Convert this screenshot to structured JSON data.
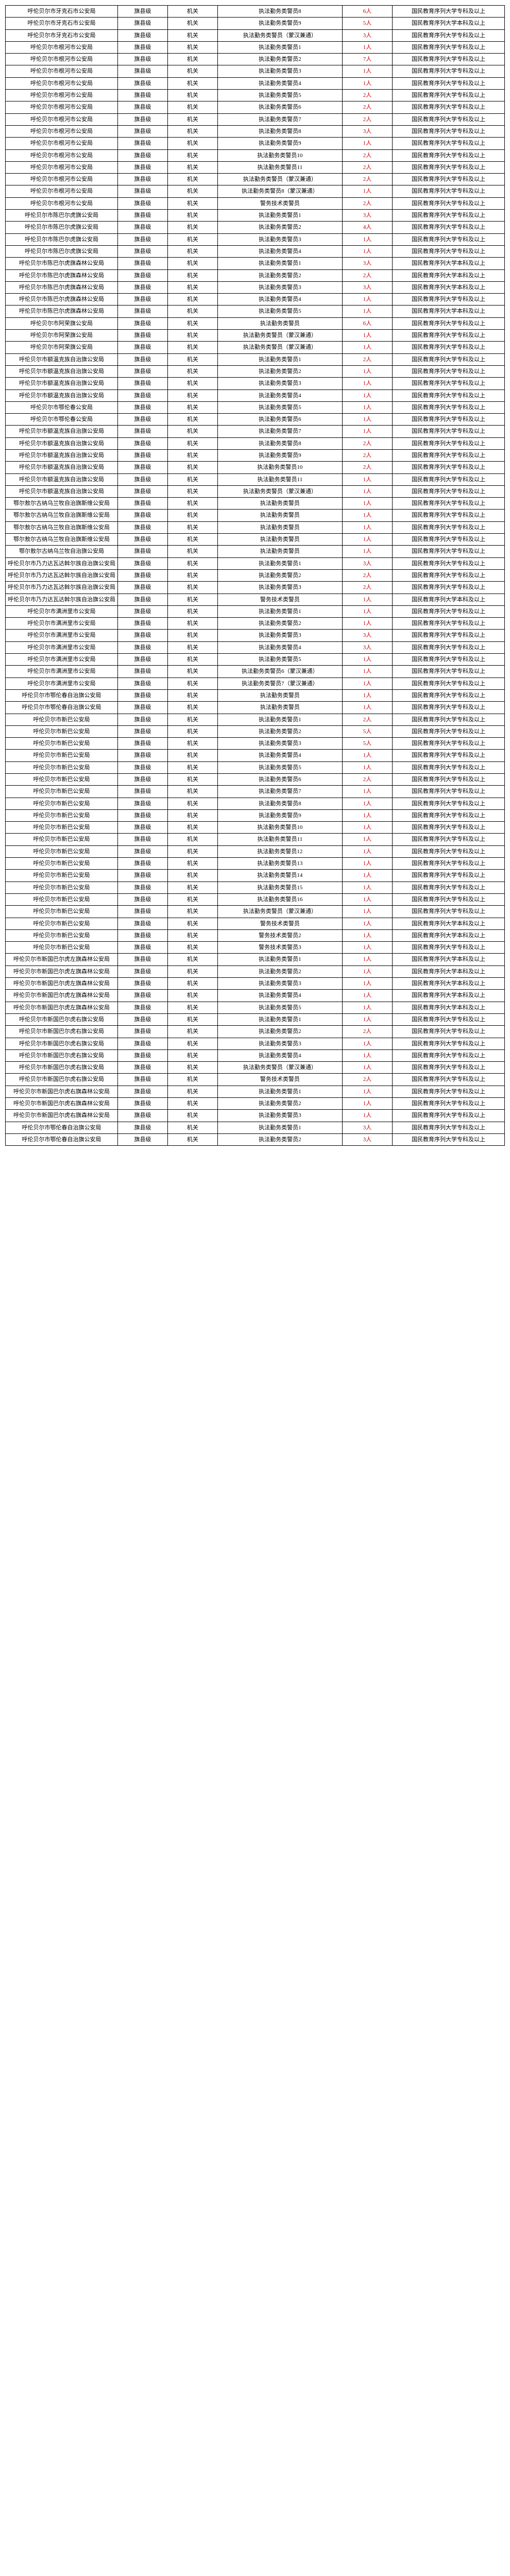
{
  "table": {
    "column_widths": [
      "180px",
      "80px",
      "80px",
      "200px",
      "80px",
      "180px"
    ],
    "count_color": "#c00000",
    "border_color": "#000000",
    "font_family": "SimSun",
    "font_size": 11,
    "level_default": "旗县级",
    "type_default": "机关",
    "edu_zhuanke": "国民教育序列大学专科及以上",
    "edu_benke": "国民教育序列大学本科及以上",
    "rows": [
      {
        "org": "呼伦贝尔市牙克石市公安局",
        "pos": "执法勤务类警员8",
        "count": "6人",
        "edu": "zk"
      },
      {
        "org": "呼伦贝尔市牙克石市公安局",
        "pos": "执法勤务类警员9",
        "count": "5人",
        "edu": "bk"
      },
      {
        "org": "呼伦贝尔市牙克石市公安局",
        "pos": "执法勤务类警员（蒙汉兼通）",
        "count": "3人",
        "edu": "zk"
      },
      {
        "org": "呼伦贝尔市根河市公安局",
        "pos": "执法勤务类警员1",
        "count": "1人",
        "edu": "zk"
      },
      {
        "org": "呼伦贝尔市根河市公安局",
        "pos": "执法勤务类警员2",
        "count": "7人",
        "edu": "zk"
      },
      {
        "org": "呼伦贝尔市根河市公安局",
        "pos": "执法勤务类警员3",
        "count": "1人",
        "edu": "zk"
      },
      {
        "org": "呼伦贝尔市根河市公安局",
        "pos": "执法勤务类警员4",
        "count": "1人",
        "edu": "zk"
      },
      {
        "org": "呼伦贝尔市根河市公安局",
        "pos": "执法勤务类警员5",
        "count": "2人",
        "edu": "zk"
      },
      {
        "org": "呼伦贝尔市根河市公安局",
        "pos": "执法勤务类警员6",
        "count": "2人",
        "edu": "zk"
      },
      {
        "org": "呼伦贝尔市根河市公安局",
        "pos": "执法勤务类警员7",
        "count": "2人",
        "edu": "zk"
      },
      {
        "org": "呼伦贝尔市根河市公安局",
        "pos": "执法勤务类警员8",
        "count": "3人",
        "edu": "zk"
      },
      {
        "org": "呼伦贝尔市根河市公安局",
        "pos": "执法勤务类警员9",
        "count": "1人",
        "edu": "zk"
      },
      {
        "org": "呼伦贝尔市根河市公安局",
        "pos": "执法勤务类警员10",
        "count": "2人",
        "edu": "zk"
      },
      {
        "org": "呼伦贝尔市根河市公安局",
        "pos": "执法勤务类警员11",
        "count": "2人",
        "edu": "zk"
      },
      {
        "org": "呼伦贝尔市根河市公安局",
        "pos": "执法勤务类警员（蒙汉兼通）",
        "count": "2人",
        "edu": "zk"
      },
      {
        "org": "呼伦贝尔市根河市公安局",
        "pos": "执法勤务类警员8（蒙汉兼通）",
        "count": "1人",
        "edu": "zk"
      },
      {
        "org": "呼伦贝尔市根河市公安局",
        "pos": "警务技术类警员",
        "count": "2人",
        "edu": "zk"
      },
      {
        "org": "呼伦贝尔市陈巴尔虎旗公安局",
        "pos": "执法勤务类警员1",
        "count": "3人",
        "edu": "zk"
      },
      {
        "org": "呼伦贝尔市陈巴尔虎旗公安局",
        "pos": "执法勤务类警员2",
        "count": "4人",
        "edu": "zk"
      },
      {
        "org": "呼伦贝尔市陈巴尔虎旗公安局",
        "pos": "执法勤务类警员3",
        "count": "1人",
        "edu": "zk"
      },
      {
        "org": "呼伦贝尔市陈巴尔虎旗公安局",
        "pos": "执法勤务类警员4",
        "count": "1人",
        "edu": "zk"
      },
      {
        "org": "呼伦贝尔市陈巴尔虎旗森林公安局",
        "pos": "执法勤务类警员1",
        "count": "3人",
        "edu": "bk"
      },
      {
        "org": "呼伦贝尔市陈巴尔虎旗森林公安局",
        "pos": "执法勤务类警员2",
        "count": "2人",
        "edu": "bk"
      },
      {
        "org": "呼伦贝尔市陈巴尔虎旗森林公安局",
        "pos": "执法勤务类警员3",
        "count": "3人",
        "edu": "bk"
      },
      {
        "org": "呼伦贝尔市陈巴尔虎旗森林公安局",
        "pos": "执法勤务类警员4",
        "count": "1人",
        "edu": "zk"
      },
      {
        "org": "呼伦贝尔市陈巴尔虎旗森林公安局",
        "pos": "执法勤务类警员5",
        "count": "1人",
        "edu": "bk"
      },
      {
        "org": "呼伦贝尔市阿荣旗公安局",
        "pos": "执法勤务类警员",
        "count": "6人",
        "edu": "zk"
      },
      {
        "org": "呼伦贝尔市阿荣旗公安局",
        "pos": "执法勤务类警员（蒙汉兼通）",
        "count": "1人",
        "edu": "zk"
      },
      {
        "org": "呼伦贝尔市阿荣旗公安局",
        "pos": "执法勤务类警员（蒙汉兼通）",
        "count": "1人",
        "edu": "zk"
      },
      {
        "org": "呼伦贝尔市额温克族自治旗公安局",
        "pos": "执法勤务类警员1",
        "count": "2人",
        "edu": "zk"
      },
      {
        "org": "呼伦贝尔市额温克族自治旗公安局",
        "pos": "执法勤务类警员2",
        "count": "1人",
        "edu": "zk"
      },
      {
        "org": "呼伦贝尔市额温克族自治旗公安局",
        "pos": "执法勤务类警员3",
        "count": "1人",
        "edu": "zk"
      },
      {
        "org": "呼伦贝尔市额温克族自治旗公安局",
        "pos": "执法勤务类警员4",
        "count": "1人",
        "edu": "zk"
      },
      {
        "org": "呼伦贝尔市鄂伦春公安局",
        "pos": "执法勤务类警员5",
        "count": "1人",
        "edu": "zk"
      },
      {
        "org": "呼伦贝尔市鄂伦春公安局",
        "pos": "执法勤务类警员6",
        "count": "1人",
        "edu": "zk"
      },
      {
        "org": "呼伦贝尔市额温克族自治旗公安局",
        "pos": "执法勤务类警员7",
        "count": "1人",
        "edu": "zk"
      },
      {
        "org": "呼伦贝尔市额温克族自治旗公安局",
        "pos": "执法勤务类警员8",
        "count": "2人",
        "edu": "zk"
      },
      {
        "org": "呼伦贝尔市额温克族自治旗公安局",
        "pos": "执法勤务类警员9",
        "count": "2人",
        "edu": "zk"
      },
      {
        "org": "呼伦贝尔市额温克族自治旗公安局",
        "pos": "执法勤务类警员10",
        "count": "2人",
        "edu": "zk"
      },
      {
        "org": "呼伦贝尔市额温克族自治旗公安局",
        "pos": "执法勤务类警员11",
        "count": "1人",
        "edu": "zk"
      },
      {
        "org": "呼伦贝尔市额温克族自治旗公安局",
        "pos": "执法勤务类警员（蒙汉兼通）",
        "count": "1人",
        "edu": "zk"
      },
      {
        "org": "鄂尔敖尔古纳乌兰牧自治旗斯维公安局",
        "pos": "执法勤务类警员",
        "count": "1人",
        "edu": "zk"
      },
      {
        "org": "鄂尔敖尔古纳乌兰牧自治旗斯维公安局",
        "pos": "执法勤务类警员",
        "count": "1人",
        "edu": "zk"
      },
      {
        "org": "鄂尔敖尔古纳乌兰牧自治旗斯维公安局",
        "pos": "执法勤务类警员",
        "count": "1人",
        "edu": "zk"
      },
      {
        "org": "鄂尔敖尔古纳乌兰牧自治旗斯维公安局",
        "pos": "执法勤务类警员",
        "count": "1人",
        "edu": "zk"
      },
      {
        "org": "鄂尔敖尔古纳乌兰牧自治旗公安局",
        "pos": "执法勤务类警员",
        "count": "1人",
        "edu": "zk"
      },
      {
        "org": "呼伦贝尔市乃力达瓦达斡尔族自治旗公安局",
        "pos": "执法勤务类警员1",
        "count": "3人",
        "edu": "zk"
      },
      {
        "org": "呼伦贝尔市乃力达瓦达斡尔族自治旗公安局",
        "pos": "执法勤务类警员2",
        "count": "2人",
        "edu": "zk"
      },
      {
        "org": "呼伦贝尔市乃力达瓦达斡尔族自治旗公安局",
        "pos": "执法勤务类警员3",
        "count": "2人",
        "edu": "zk"
      },
      {
        "org": "呼伦贝尔市乃力达瓦达斡尔族自治旗公安局",
        "pos": "警务技术类警员",
        "count": "1人",
        "edu": "bk"
      },
      {
        "org": "呼伦贝尔市满洲里市公安局",
        "pos": "执法勤务类警员1",
        "count": "1人",
        "edu": "zk"
      },
      {
        "org": "呼伦贝尔市满洲里市公安局",
        "pos": "执法勤务类警员2",
        "count": "1人",
        "edu": "zk"
      },
      {
        "org": "呼伦贝尔市满洲里市公安局",
        "pos": "执法勤务类警员3",
        "count": "3人",
        "edu": "zk"
      },
      {
        "org": "呼伦贝尔市满洲里市公安局",
        "pos": "执法勤务类警员4",
        "count": "3人",
        "edu": "zk"
      },
      {
        "org": "呼伦贝尔市满洲里市公安局",
        "pos": "执法勤务类警员5",
        "count": "1人",
        "edu": "zk"
      },
      {
        "org": "呼伦贝尔市满洲里市公安局",
        "pos": "执法勤务类警员6（蒙汉兼通）",
        "count": "1人",
        "edu": "zk"
      },
      {
        "org": "呼伦贝尔市满洲里市公安局",
        "pos": "执法勤务类警员7（蒙汉兼通）",
        "count": "1人",
        "edu": "zk"
      },
      {
        "org": "呼伦贝尔市鄂伦春自治旗公安局",
        "pos": "执法勤务类警员",
        "count": "1人",
        "edu": "zk"
      },
      {
        "org": "呼伦贝尔市鄂伦春自治旗公安局",
        "pos": "执法勤务类警员",
        "count": "1人",
        "edu": "zk"
      },
      {
        "org": "呼伦贝尔市新巴公安局",
        "pos": "执法勤务类警员1",
        "count": "2人",
        "edu": "zk"
      },
      {
        "org": "呼伦贝尔市新巴公安局",
        "pos": "执法勤务类警员2",
        "count": "5人",
        "edu": "zk"
      },
      {
        "org": "呼伦贝尔市新巴公安局",
        "pos": "执法勤务类警员3",
        "count": "5人",
        "edu": "zk"
      },
      {
        "org": "呼伦贝尔市新巴公安局",
        "pos": "执法勤务类警员4",
        "count": "1人",
        "edu": "zk"
      },
      {
        "org": "呼伦贝尔市新巴公安局",
        "pos": "执法勤务类警员5",
        "count": "1人",
        "edu": "zk"
      },
      {
        "org": "呼伦贝尔市新巴公安局",
        "pos": "执法勤务类警员6",
        "count": "2人",
        "edu": "zk"
      },
      {
        "org": "呼伦贝尔市新巴公安局",
        "pos": "执法勤务类警员7",
        "count": "1人",
        "edu": "zk"
      },
      {
        "org": "呼伦贝尔市新巴公安局",
        "pos": "执法勤务类警员8",
        "count": "1人",
        "edu": "zk"
      },
      {
        "org": "呼伦贝尔市新巴公安局",
        "pos": "执法勤务类警员9",
        "count": "1人",
        "edu": "zk"
      },
      {
        "org": "呼伦贝尔市新巴公安局",
        "pos": "执法勤务类警员10",
        "count": "1人",
        "edu": "zk"
      },
      {
        "org": "呼伦贝尔市新巴公安局",
        "pos": "执法勤务类警员11",
        "count": "1人",
        "edu": "zk"
      },
      {
        "org": "呼伦贝尔市新巴公安局",
        "pos": "执法勤务类警员12",
        "count": "1人",
        "edu": "zk"
      },
      {
        "org": "呼伦贝尔市新巴公安局",
        "pos": "执法勤务类警员13",
        "count": "1人",
        "edu": "zk"
      },
      {
        "org": "呼伦贝尔市新巴公安局",
        "pos": "执法勤务类警员14",
        "count": "1人",
        "edu": "zk"
      },
      {
        "org": "呼伦贝尔市新巴公安局",
        "pos": "执法勤务类警员15",
        "count": "1人",
        "edu": "zk"
      },
      {
        "org": "呼伦贝尔市新巴公安局",
        "pos": "执法勤务类警员16",
        "count": "1人",
        "edu": "zk"
      },
      {
        "org": "呼伦贝尔市新巴公安局",
        "pos": "执法勤务类警员（蒙汉兼通）",
        "count": "1人",
        "edu": "zk"
      },
      {
        "org": "呼伦贝尔市新巴公安局",
        "pos": "警务技术类警员",
        "count": "1人",
        "edu": "bk"
      },
      {
        "org": "呼伦贝尔市新巴公安局",
        "pos": "警务技术类警员2",
        "count": "1人",
        "edu": "bk"
      },
      {
        "org": "呼伦贝尔市新巴公安局",
        "pos": "警务技术类警员3",
        "count": "1人",
        "edu": "zk"
      },
      {
        "org": "呼伦贝尔市新国巴尔虎左旗森林公安局",
        "pos": "执法勤务类警员1",
        "count": "1人",
        "edu": "bk"
      },
      {
        "org": "呼伦贝尔市新国巴尔虎左旗森林公安局",
        "pos": "执法勤务类警员2",
        "count": "1人",
        "edu": "bk"
      },
      {
        "org": "呼伦贝尔市新国巴尔虎左旗森林公安局",
        "pos": "执法勤务类警员3",
        "count": "1人",
        "edu": "bk"
      },
      {
        "org": "呼伦贝尔市新国巴尔虎左旗森林公安局",
        "pos": "执法勤务类警员4",
        "count": "1人",
        "edu": "bk"
      },
      {
        "org": "呼伦贝尔市新国巴尔虎左旗森林公安局",
        "pos": "执法勤务类警员5",
        "count": "1人",
        "edu": "bk"
      },
      {
        "org": "呼伦贝尔市新国巴尔虎右旗公安局",
        "pos": "执法勤务类警员1",
        "count": "1人",
        "edu": "zk"
      },
      {
        "org": "呼伦贝尔市新国巴尔虎右旗公安局",
        "pos": "执法勤务类警员2",
        "count": "2人",
        "edu": "zk"
      },
      {
        "org": "呼伦贝尔市新国巴尔虎右旗公安局",
        "pos": "执法勤务类警员3",
        "count": "1人",
        "edu": "zk"
      },
      {
        "org": "呼伦贝尔市新国巴尔虎右旗公安局",
        "pos": "执法勤务类警员4",
        "count": "1人",
        "edu": "zk"
      },
      {
        "org": "呼伦贝尔市新国巴尔虎右旗公安局",
        "pos": "执法勤务类警员（蒙汉兼通）",
        "count": "1人",
        "edu": "zk"
      },
      {
        "org": "呼伦贝尔市新国巴尔虎右旗公安局",
        "pos": "警务技术类警员",
        "count": "2人",
        "edu": "zk"
      },
      {
        "org": "呼伦贝尔市新国巴尔虎右旗森林公安局",
        "pos": "执法勤务类警员1",
        "count": "1人",
        "edu": "zk"
      },
      {
        "org": "呼伦贝尔市新国巴尔虎右旗森林公安局",
        "pos": "执法勤务类警员2",
        "count": "1人",
        "edu": "zk"
      },
      {
        "org": "呼伦贝尔市新国巴尔虎右旗森林公安局",
        "pos": "执法勤务类警员3",
        "count": "1人",
        "edu": "zk"
      },
      {
        "org": "呼伦贝尔市鄂伦春自治旗公安局",
        "pos": "执法勤务类警员1",
        "count": "3人",
        "edu": "zk"
      },
      {
        "org": "呼伦贝尔市鄂伦春自治旗公安局",
        "pos": "执法勤务类警员2",
        "count": "3人",
        "edu": "zk"
      }
    ]
  }
}
